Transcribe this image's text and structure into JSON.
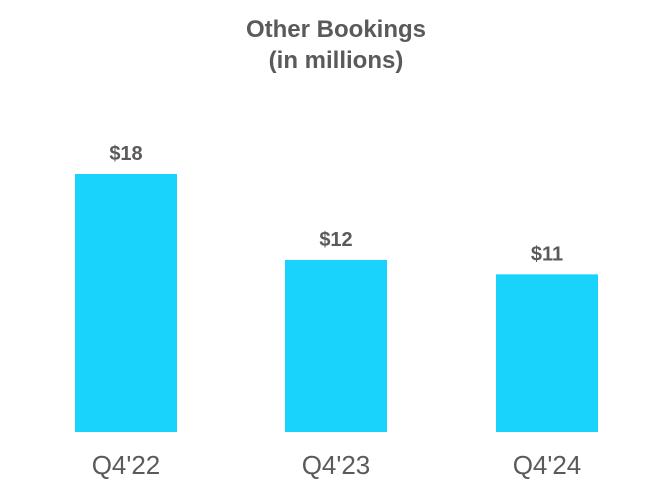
{
  "chart_data": {
    "type": "bar",
    "title": "Other Bookings",
    "subtitle": "(in millions)",
    "categories": [
      "Q4'22",
      "Q4'23",
      "Q4'24"
    ],
    "values": [
      18,
      12,
      11
    ],
    "data_labels": [
      "$18",
      "$12",
      "$11"
    ],
    "xlabel": "",
    "ylabel": "",
    "ylim": [
      0,
      18
    ],
    "grid": false,
    "legend": "none",
    "bar_color": "#1ad3fc",
    "label_color": "#5a5a5a",
    "tick_color": "#5a5a5a"
  }
}
